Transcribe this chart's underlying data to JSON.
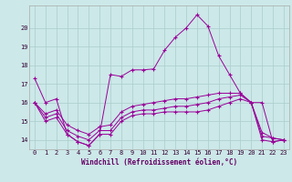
{
  "x": [
    0,
    1,
    2,
    3,
    4,
    5,
    6,
    7,
    8,
    9,
    10,
    11,
    12,
    13,
    14,
    15,
    16,
    17,
    18,
    19,
    20,
    21,
    22,
    23
  ],
  "line1": [
    17.3,
    16.0,
    16.2,
    14.3,
    13.9,
    13.7,
    14.3,
    17.5,
    17.4,
    17.75,
    17.75,
    17.8,
    18.8,
    19.5,
    20.0,
    20.7,
    20.1,
    18.5,
    17.5,
    16.5,
    16.0,
    16.0,
    13.9,
    14.0
  ],
  "line2": [
    16.0,
    15.0,
    15.2,
    14.3,
    13.9,
    13.7,
    14.3,
    14.3,
    15.0,
    15.3,
    15.4,
    15.4,
    15.5,
    15.5,
    15.5,
    15.5,
    15.6,
    15.8,
    16.0,
    16.2,
    16.0,
    14.0,
    13.9,
    14.0
  ],
  "line3": [
    16.0,
    15.2,
    15.4,
    14.5,
    14.2,
    14.0,
    14.5,
    14.5,
    15.2,
    15.5,
    15.6,
    15.6,
    15.7,
    15.8,
    15.8,
    15.9,
    16.0,
    16.2,
    16.3,
    16.4,
    16.0,
    14.2,
    14.1,
    14.0
  ],
  "line4": [
    16.0,
    15.4,
    15.6,
    14.8,
    14.5,
    14.3,
    14.7,
    14.8,
    15.5,
    15.8,
    15.9,
    16.0,
    16.1,
    16.2,
    16.2,
    16.3,
    16.4,
    16.5,
    16.5,
    16.5,
    16.0,
    14.4,
    14.1,
    14.0
  ],
  "line_color": "#990099",
  "bg_color": "#cce8e8",
  "grid_color": "#aacccc",
  "ylim": [
    13.5,
    21.2
  ],
  "yticks": [
    14,
    15,
    16,
    17,
    18,
    19,
    20
  ],
  "xlim": [
    -0.5,
    23.5
  ],
  "xlabel": "Windchill (Refroidissement éolien,°C)",
  "xlabel_color": "#660066",
  "xlabel_fontsize": 5.5,
  "tick_fontsize": 5.0,
  "linewidth": 0.7,
  "markersize": 2.5
}
